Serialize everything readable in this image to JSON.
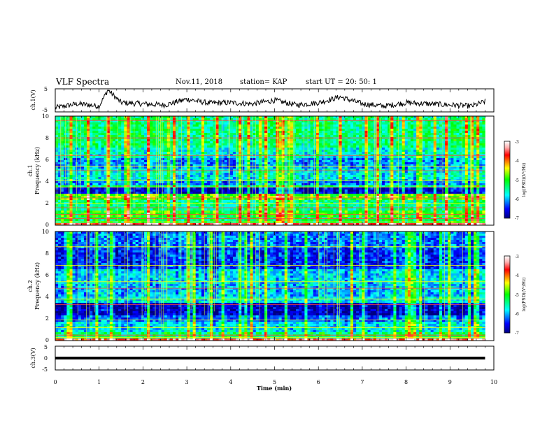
{
  "header": {
    "title": "VLF Spectra",
    "date": "Nov.11, 2018",
    "station": "station= KAP",
    "start": "start  UT  =   20: 50: 1"
  },
  "chart_data": [
    {
      "type": "line",
      "panel": "ch1-waveform",
      "ylabel": "ch.1(V)",
      "ylim": [
        -5,
        5
      ],
      "yticks": [
        "5",
        "-5"
      ],
      "xlim": [
        0,
        10
      ],
      "x": [
        0,
        0.5,
        1,
        1.2,
        1.5,
        2,
        2.5,
        3,
        3.5,
        4,
        4.5,
        5,
        5.5,
        6,
        6.5,
        7,
        7.5,
        8,
        8.5,
        9,
        9.5,
        9.8
      ],
      "y": [
        -3.2,
        -1.5,
        -2.5,
        4.5,
        -1.0,
        -1.5,
        -2.0,
        0.5,
        -1.2,
        -1.0,
        -1.5,
        0.0,
        -2.0,
        -1.0,
        1.5,
        -1.5,
        -2.5,
        -1.0,
        -1.5,
        -2.0,
        -2.5,
        -0.5
      ]
    },
    {
      "type": "heatmap",
      "panel": "ch1-spectrogram",
      "ylabel": "ch.1\nFrequency (kHz)",
      "ylabel_line1": "ch.1",
      "ylabel_line2": "Frequency (kHz)",
      "ylim": [
        0,
        10
      ],
      "yticks": [
        "0",
        "2",
        "4",
        "6",
        "8",
        "10"
      ],
      "xlim": [
        0,
        10
      ],
      "data_extent_min": 9.8,
      "colorbar": {
        "min": -7,
        "max": -3,
        "ticks": [
          "-3",
          "-4",
          "-5",
          "-6",
          "-7"
        ],
        "label": "log(PSD)(V²/Hz)"
      }
    },
    {
      "type": "heatmap",
      "panel": "ch2-spectrogram",
      "ylabel": "ch.2\nFrequency (kHz)",
      "ylabel_line1": "ch.2",
      "ylabel_line2": "Frequency (kHz)",
      "ylim": [
        0,
        10
      ],
      "yticks": [
        "0",
        "2",
        "4",
        "6",
        "8",
        "10"
      ],
      "xlim": [
        0,
        10
      ],
      "data_extent_min": 9.8,
      "colorbar": {
        "min": -7,
        "max": -3,
        "ticks": [
          "-3",
          "-4",
          "-5",
          "-6",
          "-7"
        ],
        "label": "log(PSD)(V²/Hz)"
      }
    },
    {
      "type": "line",
      "panel": "ch3-waveform",
      "ylabel": "ch.3(V)",
      "ylim": [
        -5,
        5
      ],
      "yticks": [
        "5",
        "0",
        "-5"
      ],
      "xlim": [
        0,
        10
      ],
      "x": [
        0,
        9.8
      ],
      "y": [
        0,
        0
      ],
      "xlabel": "Time  (min)",
      "xticks": [
        "0",
        "1",
        "2",
        "3",
        "4",
        "5",
        "6",
        "7",
        "8",
        "9",
        "10"
      ]
    }
  ]
}
